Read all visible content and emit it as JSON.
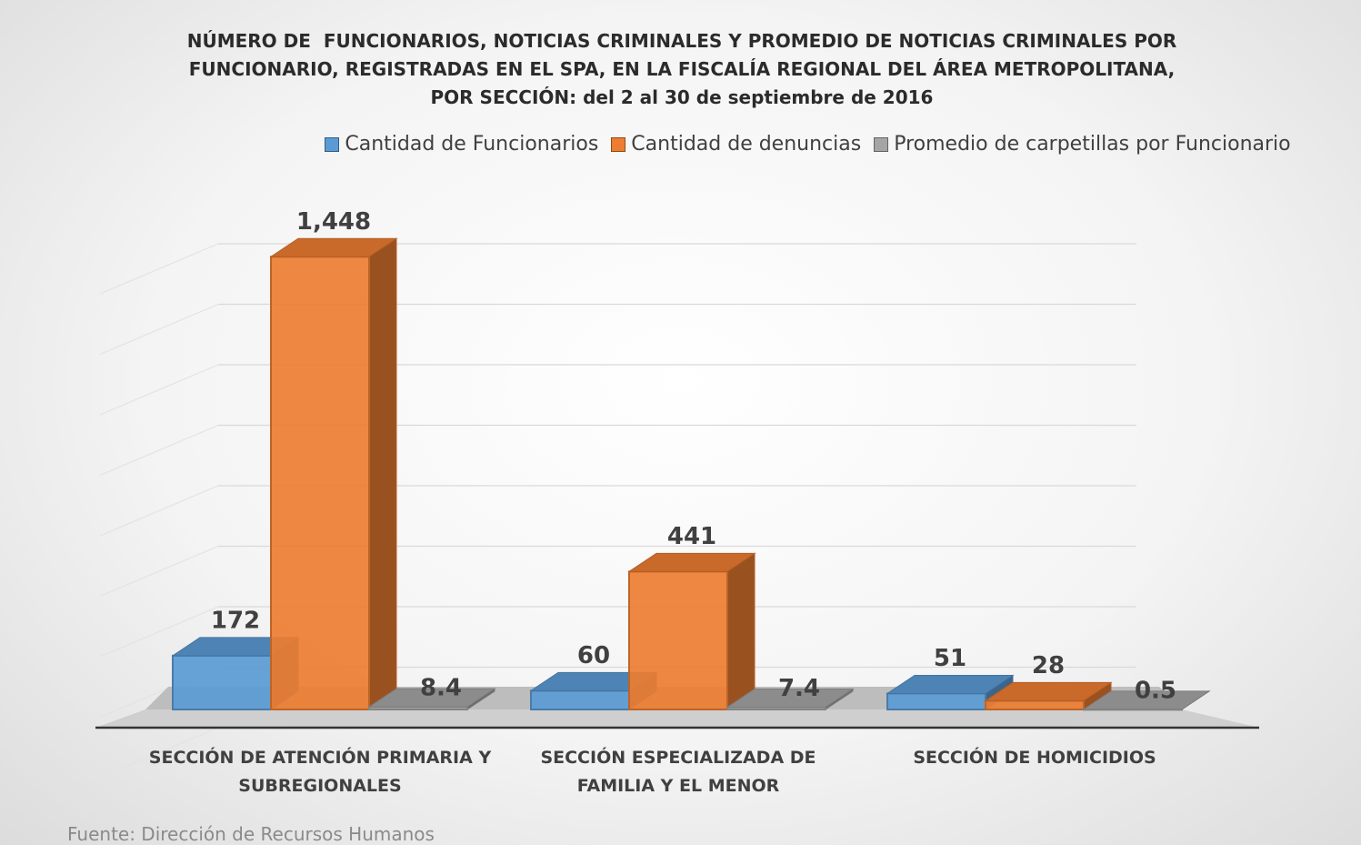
{
  "chart_data": {
    "type": "bar3d",
    "title": "NÚMERO DE  FUNCIONARIOS, NOTICIAS CRIMINALES Y PROMEDIO DE NOTICIAS CRIMINALES POR FUNCIONARIO, REGISTRADAS EN EL SPA, EN LA FISCALÍA REGIONAL DEL ÁREA METROPOLITANA, POR SECCIÓN: del 2 al 30 de septiembre de 2016",
    "categories": [
      "SECCIÓN DE ATENCIÓN PRIMARIA Y SUBREGIONALES",
      "SECCIÓN ESPECIALIZADA DE FAMILIA Y EL MENOR",
      "SECCIÓN DE HOMICIDIOS"
    ],
    "series": [
      {
        "name": "Cantidad de Funcionarios",
        "color": "#5b9bd5",
        "values": [
          172,
          60,
          51
        ]
      },
      {
        "name": "Cantidad de denuncias",
        "color": "#ed7d31",
        "values": [
          1448,
          441,
          28
        ],
        "value_labels": [
          "1,448",
          "441",
          "28"
        ]
      },
      {
        "name": "Promedio de carpetillas por Funcionario",
        "color": "#a5a5a5",
        "values": [
          8.4,
          7.4,
          0.5
        ]
      }
    ],
    "ylim": [
      0,
      1600
    ],
    "yticks": [
      0,
      200,
      400,
      600,
      800,
      1000,
      1200,
      1400,
      1600
    ],
    "grid": true,
    "legend": "top",
    "source": "Fuente: Dirección de Recursos Humanos"
  }
}
